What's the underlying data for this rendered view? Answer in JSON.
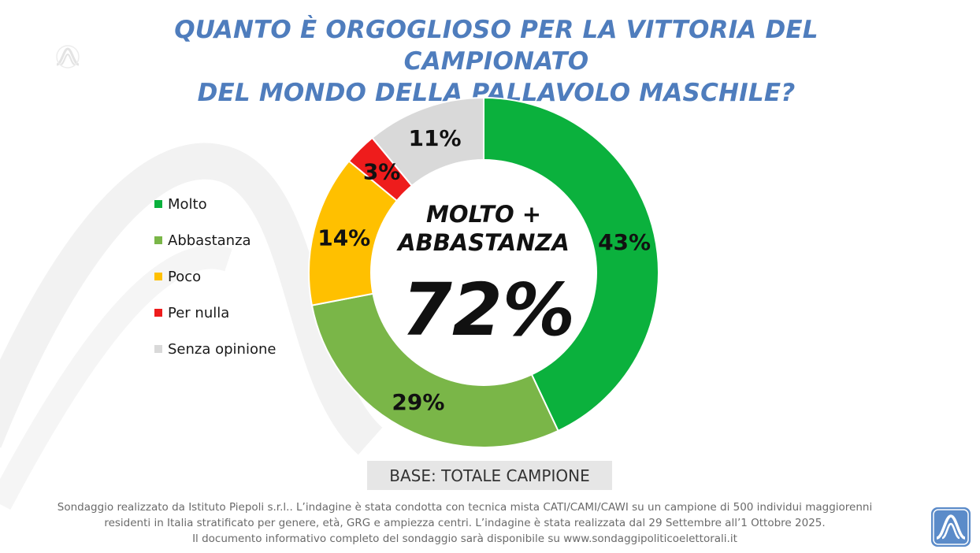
{
  "title": {
    "line1": "QUANTO È ORGOGLIOSO PER LA VITTORIA DEL CAMPIONATO",
    "line2": "DEL MONDO DELLA PALLAVOLO MASCHILE?"
  },
  "center": {
    "line1": "MOLTO +",
    "line2": "ABBASTANZA",
    "value": "72%"
  },
  "base_label": "BASE: TOTALE CAMPIONE",
  "footnote": {
    "line1": "Sondaggio realizzato da Istituto Piepoli s.r.l.. L’indagine è stata condotta con tecnica mista CATI/CAMI/CAWI su un campione di 500 individui maggiorenni",
    "line2": "residenti in Italia stratificato per genere, età, GRG e ampiezza centri. L’indagine è stata realizzata dal 29 Settembre all’1 Ottobre 2025.",
    "line3": "Il documento informativo completo del sondaggio sarà disponibile su www.sondaggipoliticoelettorali.it"
  },
  "colors": {
    "title": "#4f7dbd",
    "logo": "#5b8bc9"
  },
  "chart_data": {
    "type": "pie",
    "title": "QUANTO È ORGOGLIOSO PER LA VITTORIA DEL CAMPIONATO DEL MONDO DELLA PALLAVOLO MASCHILE?",
    "legend_position": "left",
    "categories": [
      "Molto",
      "Abbastanza",
      "Poco",
      "Per nulla",
      "Senza opinione"
    ],
    "values": [
      43,
      29,
      14,
      3,
      11
    ],
    "labels": [
      "43%",
      "29%",
      "14%",
      "3%",
      "11%"
    ],
    "colors": [
      "#0bb13d",
      "#7ab648",
      "#ffc000",
      "#ee1c1c",
      "#d9d9d9"
    ],
    "unit": "%"
  }
}
